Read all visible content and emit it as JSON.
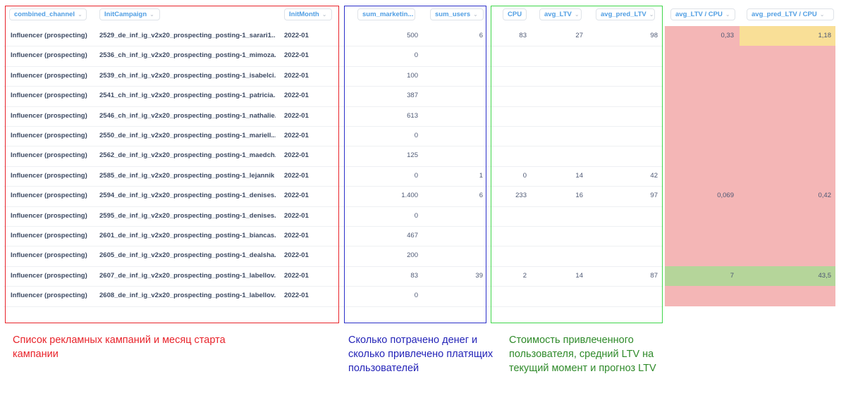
{
  "columns": [
    {
      "key": "combined_channel",
      "label": "combined_channel"
    },
    {
      "key": "initCampaign",
      "label": "InitCampaign"
    },
    {
      "key": "initMonth",
      "label": "InitMonth"
    },
    {
      "key": "sum_marketing",
      "label": "sum_marketin..."
    },
    {
      "key": "sum_users",
      "label": "sum_users"
    },
    {
      "key": "cpu",
      "label": "CPU"
    },
    {
      "key": "avg_ltv",
      "label": "avg_LTV"
    },
    {
      "key": "avg_pred_ltv",
      "label": "avg_pred_LTV"
    },
    {
      "key": "ltv_cpu",
      "label": "avg_LTV / CPU"
    },
    {
      "key": "pred_ltv_cpu",
      "label": "avg_pred_LTV / CPU"
    }
  ],
  "rows": [
    {
      "channel": "Influencer (prospecting)",
      "campaign": "2529_de_inf_ig_v2x20_prospecting_posting-1_sarari1...",
      "month": "2022-01",
      "spend": "500",
      "users": "6",
      "cpu": "83",
      "ltv": "27",
      "pred": "98",
      "ltv_cpu": "0,33",
      "pred_cpu": "1,18",
      "heat_ltv": "#f4b6b6",
      "heat_pred": "#f9df97"
    },
    {
      "channel": "Influencer (prospecting)",
      "campaign": "2536_ch_inf_ig_v2x20_prospecting_posting-1_mimoza...",
      "month": "2022-01",
      "spend": "0",
      "users": "",
      "cpu": "",
      "ltv": "",
      "pred": "",
      "ltv_cpu": "",
      "pred_cpu": "",
      "heat_ltv": "#f4b6b6",
      "heat_pred": "#f4b6b6"
    },
    {
      "channel": "Influencer (prospecting)",
      "campaign": "2539_ch_inf_ig_v2x20_prospecting_posting-1_isabelci...",
      "month": "2022-01",
      "spend": "100",
      "users": "",
      "cpu": "",
      "ltv": "",
      "pred": "",
      "ltv_cpu": "",
      "pred_cpu": "",
      "heat_ltv": "#f4b6b6",
      "heat_pred": "#f4b6b6"
    },
    {
      "channel": "Influencer (prospecting)",
      "campaign": "2541_ch_inf_ig_v2x20_prospecting_posting-1_patricia...",
      "month": "2022-01",
      "spend": "387",
      "users": "",
      "cpu": "",
      "ltv": "",
      "pred": "",
      "ltv_cpu": "",
      "pred_cpu": "",
      "heat_ltv": "#f4b6b6",
      "heat_pred": "#f4b6b6"
    },
    {
      "channel": "Influencer (prospecting)",
      "campaign": "2546_ch_inf_ig_v2x20_prospecting_posting-1_nathalie...",
      "month": "2022-01",
      "spend": "613",
      "users": "",
      "cpu": "",
      "ltv": "",
      "pred": "",
      "ltv_cpu": "",
      "pred_cpu": "",
      "heat_ltv": "#f4b6b6",
      "heat_pred": "#f4b6b6"
    },
    {
      "channel": "Influencer (prospecting)",
      "campaign": "2550_de_inf_ig_v2x20_prospecting_posting-1_mariell...",
      "month": "2022-01",
      "spend": "0",
      "users": "",
      "cpu": "",
      "ltv": "",
      "pred": "",
      "ltv_cpu": "",
      "pred_cpu": "",
      "heat_ltv": "#f4b6b6",
      "heat_pred": "#f4b6b6"
    },
    {
      "channel": "Influencer (prospecting)",
      "campaign": "2562_de_inf_ig_v2x20_prospecting_posting-1_maedch...",
      "month": "2022-01",
      "spend": "125",
      "users": "",
      "cpu": "",
      "ltv": "",
      "pred": "",
      "ltv_cpu": "",
      "pred_cpu": "",
      "heat_ltv": "#f4b6b6",
      "heat_pred": "#f4b6b6"
    },
    {
      "channel": "Influencer (prospecting)",
      "campaign": "2585_de_inf_ig_v2x20_prospecting_posting-1_lejannik",
      "month": "2022-01",
      "spend": "0",
      "users": "1",
      "cpu": "0",
      "ltv": "14",
      "pred": "42",
      "ltv_cpu": "",
      "pred_cpu": "",
      "heat_ltv": "#f4b6b6",
      "heat_pred": "#f4b6b6"
    },
    {
      "channel": "Influencer (prospecting)",
      "campaign": "2594_de_inf_ig_v2x20_prospecting_posting-1_denises...",
      "month": "2022-01",
      "spend": "1.400",
      "users": "6",
      "cpu": "233",
      "ltv": "16",
      "pred": "97",
      "ltv_cpu": "0,069",
      "pred_cpu": "0,42",
      "heat_ltv": "#f4b6b6",
      "heat_pred": "#f4b6b6"
    },
    {
      "channel": "Influencer (prospecting)",
      "campaign": "2595_de_inf_ig_v2x20_prospecting_posting-1_denises...",
      "month": "2022-01",
      "spend": "0",
      "users": "",
      "cpu": "",
      "ltv": "",
      "pred": "",
      "ltv_cpu": "",
      "pred_cpu": "",
      "heat_ltv": "#f4b6b6",
      "heat_pred": "#f4b6b6"
    },
    {
      "channel": "Influencer (prospecting)",
      "campaign": "2601_de_inf_ig_v2x20_prospecting_posting-1_biancas...",
      "month": "2022-01",
      "spend": "467",
      "users": "",
      "cpu": "",
      "ltv": "",
      "pred": "",
      "ltv_cpu": "",
      "pred_cpu": "",
      "heat_ltv": "#f4b6b6",
      "heat_pred": "#f4b6b6"
    },
    {
      "channel": "Influencer (prospecting)",
      "campaign": "2605_de_inf_ig_v2x20_prospecting_posting-1_dealsha...",
      "month": "2022-01",
      "spend": "200",
      "users": "",
      "cpu": "",
      "ltv": "",
      "pred": "",
      "ltv_cpu": "",
      "pred_cpu": "",
      "heat_ltv": "#f4b6b6",
      "heat_pred": "#f4b6b6"
    },
    {
      "channel": "Influencer (prospecting)",
      "campaign": "2607_de_inf_ig_v2x20_prospecting_posting-1_labellov...",
      "month": "2022-01",
      "spend": "83",
      "users": "39",
      "cpu": "2",
      "ltv": "14",
      "pred": "87",
      "ltv_cpu": "7",
      "pred_cpu": "43,5",
      "heat_ltv": "#b5d59a",
      "heat_pred": "#b5d59a"
    },
    {
      "channel": "Influencer (prospecting)",
      "campaign": "2608_de_inf_ig_v2x20_prospecting_posting-1_labellov...",
      "month": "2022-01",
      "spend": "0",
      "users": "",
      "cpu": "",
      "ltv": "",
      "pred": "",
      "ltv_cpu": "",
      "pred_cpu": "",
      "heat_ltv": "#f4b6b6",
      "heat_pred": "#f4b6b6"
    }
  ],
  "annotations": {
    "red": "Список рекламных кампаний и месяц старта кампании",
    "blue": "Сколько потрачено денег и сколько привлечено платящих пользователей",
    "green": "Стоимость привлеченного пользователя, средний LTV на текущий момент и прогноз LTV"
  },
  "colors": {
    "red_box": "#e8232a",
    "blue_box": "#2b2fc9",
    "green_box": "#3fd64a",
    "red_text": "#e8232a",
    "blue_text": "#2424b8",
    "green_text": "#2f8a2a"
  }
}
